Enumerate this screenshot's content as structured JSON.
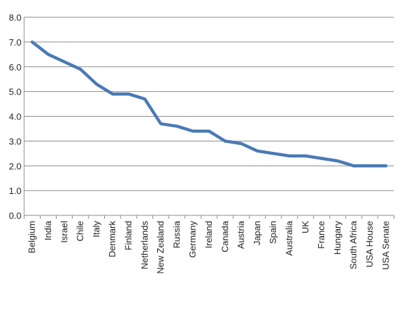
{
  "chart_data": {
    "type": "line",
    "title": "",
    "xlabel": "",
    "ylabel": "",
    "ylim": [
      0,
      8
    ],
    "yticks": [
      "0.0",
      "1.0",
      "2.0",
      "3.0",
      "4.0",
      "5.0",
      "6.0",
      "7.0",
      "8.0"
    ],
    "grid": true,
    "legend": "none",
    "categories": [
      "Belgium",
      "India",
      "Israel",
      "Chile",
      "Italy",
      "Denmark",
      "Finland",
      "Netherlands",
      "New Zealand",
      "Russia",
      "Germany",
      "Ireland",
      "Canada",
      "Austria",
      "Japan",
      "Spain",
      "Australia",
      "UK",
      "France",
      "Hungary",
      "South Africa",
      "USA House",
      "USA Senate"
    ],
    "series": [
      {
        "values": [
          7.0,
          6.5,
          6.2,
          5.9,
          5.3,
          4.9,
          4.9,
          4.7,
          3.7,
          3.6,
          3.4,
          3.4,
          3.0,
          2.9,
          2.6,
          2.5,
          2.4,
          2.4,
          2.3,
          2.2,
          2.0,
          2.0,
          2.0
        ],
        "color": "#4a7ab5"
      }
    ],
    "colors": {
      "grid": "#8a8a8a",
      "axis": "#8a8a8a",
      "text": "#222222"
    }
  }
}
